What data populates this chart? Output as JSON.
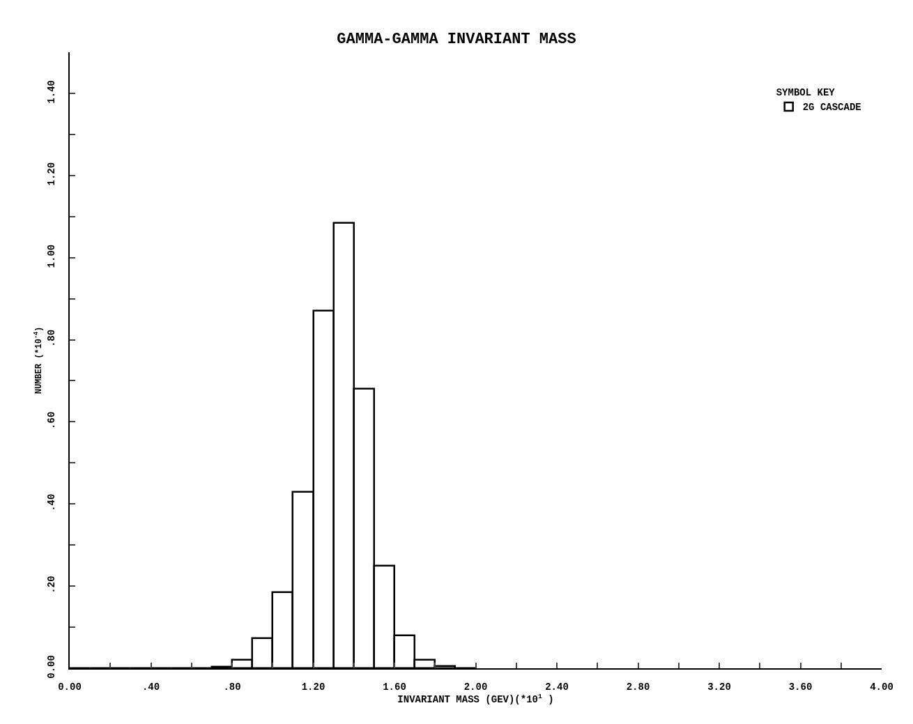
{
  "chart_data": {
    "type": "histogram",
    "title": "GAMMA-GAMMA INVARIANT MASS",
    "xlabel": "INVARIANT MASS (GEV)(*10$^{1}$ )",
    "ylabel": "NUMBER (*10$^{-4}$)",
    "legend_title": "SYMBOL KEY",
    "bins": [
      0,
      0.1,
      0.2,
      0.3,
      0.4,
      0.5,
      0.6,
      0.7,
      0.8,
      0.9,
      1.0,
      1.1,
      1.2,
      1.3,
      1.4,
      1.5,
      1.6,
      1.7,
      1.8,
      1.9,
      2.0
    ],
    "series": [
      {
        "name": "2G CASCADE",
        "color": "#000000",
        "values": [
          0,
          0,
          0,
          0,
          0,
          0,
          0,
          0.003,
          0.02,
          0.073,
          0.185,
          0.43,
          0.87,
          1.085,
          0.68,
          0.25,
          0.08,
          0.02,
          0.005,
          0
        ]
      }
    ],
    "xlim": [
      0,
      4
    ],
    "ylim": [
      0,
      1.5
    ],
    "xticks": [
      {
        "value": 0,
        "label": "0.00"
      },
      {
        "value": 0.2,
        "label": null
      },
      {
        "value": 0.4,
        "label": ".40"
      },
      {
        "value": 0.6,
        "label": null
      },
      {
        "value": 0.8,
        "label": ".80"
      },
      {
        "value": 1.0,
        "label": null
      },
      {
        "value": 1.2,
        "label": "1.20"
      },
      {
        "value": 1.4,
        "label": null
      },
      {
        "value": 1.6,
        "label": "1.60"
      },
      {
        "value": 1.8,
        "label": null
      },
      {
        "value": 2.0,
        "label": "2.00"
      },
      {
        "value": 2.2,
        "label": null
      },
      {
        "value": 2.4,
        "label": "2.40"
      },
      {
        "value": 2.6,
        "label": null
      },
      {
        "value": 2.8,
        "label": "2.80"
      },
      {
        "value": 3.0,
        "label": null
      },
      {
        "value": 3.2,
        "label": "3.20"
      },
      {
        "value": 3.4,
        "label": null
      },
      {
        "value": 3.6,
        "label": "3.60"
      },
      {
        "value": 3.8,
        "label": null
      },
      {
        "value": 4.0,
        "label": "4.00"
      }
    ],
    "yticks": [
      {
        "value": 0,
        "label": "0.00"
      },
      {
        "value": 0.1,
        "label": null
      },
      {
        "value": 0.2,
        "label": ".20"
      },
      {
        "value": 0.3,
        "label": null
      },
      {
        "value": 0.4,
        "label": ".40"
      },
      {
        "value": 0.5,
        "label": null
      },
      {
        "value": 0.6,
        "label": ".60"
      },
      {
        "value": 0.7,
        "label": null
      },
      {
        "value": 0.8,
        "label": ".80"
      },
      {
        "value": 0.9,
        "label": null
      },
      {
        "value": 1.0,
        "label": "1.00"
      },
      {
        "value": 1.1,
        "label": null
      },
      {
        "value": 1.2,
        "label": "1.20"
      },
      {
        "value": 1.3,
        "label": null
      },
      {
        "value": 1.4,
        "label": "1.40"
      }
    ],
    "grid": false,
    "legend": "top right"
  }
}
